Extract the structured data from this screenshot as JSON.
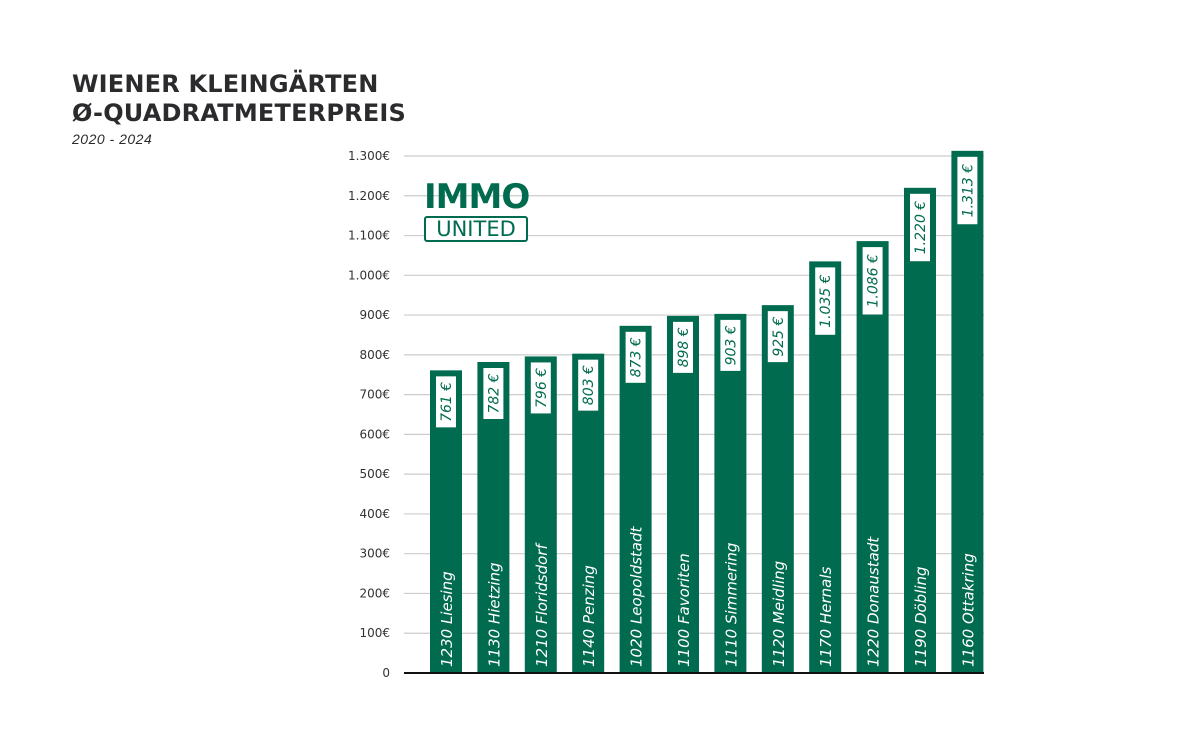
{
  "header": {
    "title_line1": "WIENER KLEINGÄRTEN",
    "title_line2": "Ø-QUADRATMETERPREIS",
    "subtitle": "2020 - 2024"
  },
  "logo": {
    "top": "IMMO",
    "bottom": "UNITED"
  },
  "colors": {
    "bar": "#006b4f",
    "grid": "#cccccc",
    "axis": "#111111"
  },
  "chart_data": {
    "type": "bar",
    "orientation": "vertical",
    "title": "WIENER KLEINGÄRTEN Ø-QUADRATMETERPREIS",
    "subtitle": "2020 - 2024",
    "categories": [
      "1230 Liesing",
      "1130 Hietzing",
      "1210 Floridsdorf",
      "1140 Penzing",
      "1020 Leopoldstadt",
      "1100 Favoriten",
      "1110 Simmering",
      "1120 Meidling",
      "1170 Hernals",
      "1220 Donaustadt",
      "1190 Döbling",
      "1160 Ottakring"
    ],
    "values": [
      761,
      782,
      796,
      803,
      873,
      898,
      903,
      925,
      1035,
      1086,
      1220,
      1313
    ],
    "data_labels": [
      "761 €",
      "782 €",
      "796 €",
      "803 €",
      "873 €",
      "898 €",
      "903 €",
      "925 €",
      "1.035 €",
      "1.086 €",
      "1.220 €",
      "1.313 €"
    ],
    "ylim": [
      0,
      1300
    ],
    "yticks": [
      0,
      100,
      200,
      300,
      400,
      500,
      600,
      700,
      800,
      900,
      1000,
      1100,
      1200,
      1300
    ],
    "ytick_labels": [
      "0",
      "100€",
      "200€",
      "300€",
      "400€",
      "500€",
      "600€",
      "700€",
      "800€",
      "900€",
      "1.000€",
      "1.100€",
      "1.200€",
      "1.300€"
    ],
    "grid": true,
    "legend": "none"
  }
}
